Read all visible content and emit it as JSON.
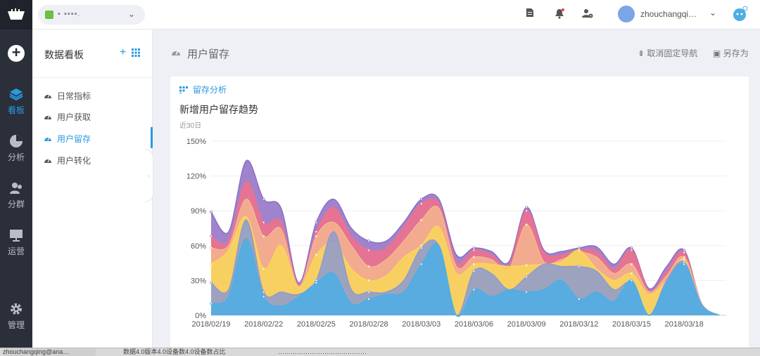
{
  "app": {
    "name": "▪ ▪▪▪▪.",
    "username": "zhouchangqi…"
  },
  "rail": {
    "items": [
      {
        "label": "看板",
        "icon": "layers-icon",
        "active": true
      },
      {
        "label": "分析",
        "icon": "pie-icon",
        "active": false
      },
      {
        "label": "分群",
        "icon": "users-icon",
        "active": false
      },
      {
        "label": "运营",
        "icon": "screen-icon",
        "active": false
      },
      {
        "label": "管理",
        "icon": "gear-icon",
        "active": false
      }
    ]
  },
  "sidebar": {
    "title": "数据看板",
    "add": "+",
    "items": [
      {
        "label": "日常指标"
      },
      {
        "label": "用户获取"
      },
      {
        "label": "用户留存"
      },
      {
        "label": "用户转化"
      }
    ]
  },
  "page": {
    "title": "用户留存",
    "unpin_label": "取消固定导航",
    "saveas_label": "另存为"
  },
  "card": {
    "tab_label": "留存分析",
    "title": "新增用户留存趋势",
    "subtitle": "近30日"
  },
  "colors": {
    "accent": "#2b9ae0",
    "rail_bg": "#2b2f3a"
  },
  "taskbar": {
    "item1": "zhouchangqing@ana…",
    "item2": "数据4.0版本4.0设备数4.0设备数占比",
    "item3": "……………………………………"
  },
  "chart_data": {
    "type": "area",
    "stacked": false,
    "title": "新增用户留存趋势",
    "subtitle": "近30日",
    "ylim": [
      0,
      150
    ],
    "y_ticks": [
      "0%",
      "30%",
      "60%",
      "90%",
      "120%",
      "150%"
    ],
    "x_ticks": [
      "2018/02/19",
      "2018/02/22",
      "2018/02/25",
      "2018/02/28",
      "2018/03/03",
      "2018/03/06",
      "2018/03/09",
      "2018/03/12",
      "2018/03/15",
      "2018/03/18"
    ],
    "x": [
      "02/19",
      "02/20",
      "02/21",
      "02/22",
      "02/23",
      "02/24",
      "02/25",
      "02/26",
      "02/27",
      "02/28",
      "03/01",
      "03/02",
      "03/03",
      "03/04",
      "03/05",
      "03/06",
      "03/07",
      "03/08",
      "03/09",
      "03/10",
      "03/11",
      "03/12",
      "03/13",
      "03/14",
      "03/15",
      "03/16",
      "03/17",
      "03/18",
      "03/19",
      "03/20"
    ],
    "grid": true,
    "series": [
      {
        "color": "#8e6fc4",
        "values": [
          89,
          72,
          133,
          100,
          92,
          28,
          80,
          100,
          75,
          64,
          64,
          80,
          100,
          100,
          52,
          58,
          55,
          46,
          93,
          56,
          55,
          58,
          59,
          44,
          58,
          23,
          42,
          56,
          10,
          0
        ]
      },
      {
        "color": "#f0708a",
        "values": [
          68,
          64,
          115,
          80,
          80,
          26,
          72,
          93,
          68,
          56,
          58,
          76,
          96,
          96,
          46,
          56,
          52,
          43,
          90,
          54,
          52,
          56,
          55,
          40,
          56,
          21,
          38,
          54,
          10,
          0
        ]
      },
      {
        "color": "#f6b58e",
        "values": [
          58,
          60,
          100,
          68,
          74,
          25,
          68,
          80,
          60,
          42,
          48,
          64,
          82,
          92,
          42,
          50,
          48,
          40,
          78,
          46,
          48,
          54,
          50,
          36,
          44,
          20,
          34,
          50,
          10,
          0
        ]
      },
      {
        "color": "#f8d65a",
        "values": [
          44,
          56,
          85,
          40,
          60,
          24,
          52,
          62,
          40,
          30,
          34,
          50,
          60,
          76,
          36,
          44,
          44,
          42,
          43,
          44,
          46,
          56,
          40,
          30,
          36,
          18,
          30,
          48,
          9,
          0
        ]
      },
      {
        "color": "#8d9bcf",
        "values": [
          28,
          22,
          82,
          20,
          20,
          18,
          30,
          72,
          22,
          20,
          20,
          30,
          58,
          60,
          0,
          38,
          36,
          22,
          33,
          44,
          42,
          42,
          38,
          22,
          28,
          0,
          30,
          46,
          9,
          0
        ]
      },
      {
        "color": "#4eaee6",
        "values": [
          10,
          16,
          66,
          16,
          8,
          16,
          28,
          36,
          10,
          14,
          18,
          20,
          44,
          60,
          0,
          22,
          16,
          22,
          20,
          22,
          30,
          14,
          20,
          12,
          30,
          0,
          28,
          44,
          9,
          0
        ]
      }
    ]
  }
}
